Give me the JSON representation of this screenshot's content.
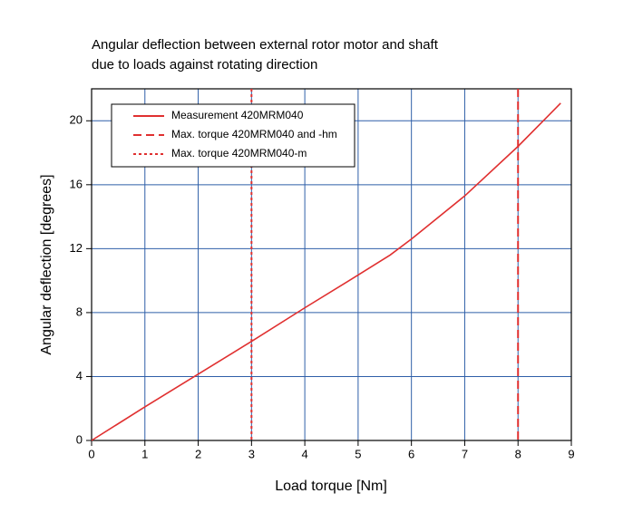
{
  "chart_data": {
    "type": "line",
    "title": [
      "Angular deflection between external rotor motor and shaft",
      "due to loads against rotating direction"
    ],
    "x_label": "Load torque [Nm]",
    "y_label": "Angular deflection [degrees]",
    "xlim": [
      0,
      9
    ],
    "xticks": [
      0,
      1,
      2,
      3,
      4,
      5,
      6,
      7,
      8,
      9
    ],
    "ylim": [
      0,
      22
    ],
    "yticks": [
      0,
      4,
      8,
      12,
      16,
      20
    ],
    "grid": true,
    "grid_color": "#2f5fa8",
    "series": [
      {
        "name": "Measurement 420MRM040",
        "color": "#e03030",
        "x": [
          0,
          1,
          2,
          3,
          4,
          5,
          5.6,
          6,
          7,
          8,
          8.8
        ],
        "values": [
          0,
          2.1,
          4.15,
          6.2,
          8.3,
          10.35,
          11.6,
          12.6,
          15.3,
          18.4,
          21.1
        ]
      }
    ],
    "reference_lines": [
      {
        "name": "Max. torque 420MRM040 and -hm",
        "color": "#e03030",
        "style": "dashed",
        "x": 8
      },
      {
        "name": "Max. torque 420MRM040-m",
        "color": "#e03030",
        "style": "dotted",
        "x": 3
      }
    ],
    "legend": "upper left"
  }
}
